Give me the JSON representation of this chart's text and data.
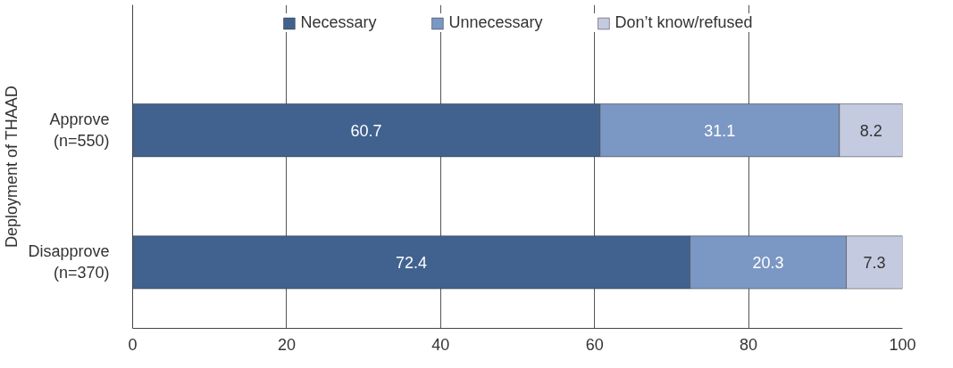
{
  "chart_data": {
    "type": "bar",
    "orientation": "horizontal",
    "stacked": true,
    "ylabel": "Deployment of THAAD",
    "categories": [
      "Approve\n(n=550)",
      "Disapprove\n(n=370)"
    ],
    "series": [
      {
        "name": "Necessary",
        "color": "#41628f",
        "values": [
          60.7,
          72.4
        ]
      },
      {
        "name": "Unnecessary",
        "color": "#7b97c3",
        "values": [
          31.1,
          20.3
        ]
      },
      {
        "name": "Don’t know/refused",
        "color": "#c4cbe0",
        "values": [
          8.2,
          7.3
        ]
      }
    ],
    "xlim": [
      0,
      100
    ],
    "xticks": [
      0,
      20,
      40,
      60,
      80,
      100
    ],
    "grid": "x",
    "legend": "top",
    "data_labels": true
  }
}
